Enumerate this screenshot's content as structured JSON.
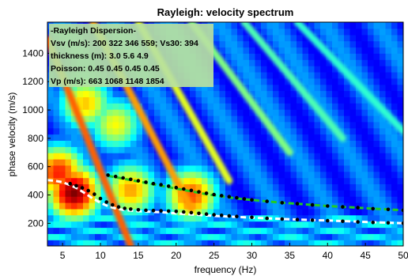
{
  "chart_data": {
    "type": "heatmap",
    "title": "Rayleigh: velocity spectrum",
    "xlabel": "frequency (Hz)",
    "ylabel": "phase velocity (m/s)",
    "xlim": [
      3,
      50
    ],
    "ylim": [
      40,
      1620
    ],
    "xticks": [
      5,
      10,
      15,
      20,
      25,
      30,
      35,
      40,
      45,
      50
    ],
    "yticks": [
      200,
      400,
      600,
      800,
      1000,
      1200,
      1400
    ],
    "colormap": "jet",
    "annotation_lines": [
      "-Rayleigh Dispersion-",
      "Vsv (m/s): 200  322  346  559; Vs30: 394",
      "thickness (m): 3.0   5.6   4.9",
      "Poisson: 0.45  0.45  0.45  0.45",
      "Vp (m/s): 663 1068 1148 1854"
    ],
    "series": [
      {
        "style": "white-dashed-curve",
        "x": [
          3,
          4,
          5,
          6,
          7,
          8,
          9,
          10,
          11,
          12,
          13,
          14,
          15,
          16,
          17,
          18,
          19,
          20,
          22,
          25,
          30,
          35,
          40,
          45,
          50
        ],
        "y": [
          505,
          500,
          490,
          470,
          445,
          410,
          375,
          345,
          320,
          305,
          295,
          290,
          285,
          283,
          280,
          278,
          275,
          270,
          262,
          252,
          240,
          228,
          220,
          210,
          200
        ]
      },
      {
        "style": "black-dots",
        "x": [
          6,
          6.8,
          7.6,
          8.4,
          9.2,
          10,
          10.8,
          11.6,
          12.4,
          13.2,
          14,
          15,
          16,
          17,
          18,
          19,
          20,
          21,
          22,
          23,
          24,
          25,
          26,
          27,
          28,
          30,
          32,
          34,
          36,
          38,
          40,
          42,
          44,
          46,
          48,
          50
        ],
        "y": [
          480,
          465,
          450,
          430,
          405,
          375,
          350,
          330,
          315,
          305,
          300,
          295,
          292,
          290,
          288,
          286,
          284,
          280,
          275,
          270,
          265,
          260,
          256,
          252,
          248,
          242,
          235,
          230,
          226,
          222,
          218,
          214,
          210,
          206,
          203,
          200
        ]
      },
      {
        "style": "green-dashed-curve",
        "x": [
          11,
          12,
          14,
          16,
          18,
          20,
          22,
          24,
          26,
          28,
          30,
          32,
          34,
          36,
          38,
          40,
          42,
          44,
          46,
          48,
          50
        ],
        "y": [
          535,
          525,
          505,
          485,
          465,
          445,
          425,
          405,
          390,
          375,
          365,
          355,
          345,
          338,
          330,
          322,
          316,
          310,
          303,
          298,
          292
        ]
      },
      {
        "style": "black-dots",
        "x": [
          11,
          12,
          13,
          14,
          15,
          16,
          17,
          18,
          19,
          20,
          21,
          22,
          23,
          24,
          25,
          26,
          27,
          28,
          29,
          30,
          32,
          34,
          36,
          38,
          40,
          42,
          44,
          46,
          48,
          50
        ],
        "y": [
          540,
          530,
          520,
          510,
          500,
          490,
          480,
          472,
          462,
          452,
          442,
          432,
          422,
          412,
          403,
          395,
          388,
          380,
          372,
          365,
          355,
          345,
          338,
          330,
          322,
          316,
          310,
          303,
          298,
          292
        ]
      }
    ],
    "spectrum_ridges": [
      {
        "f0": 3,
        "v0": 1500,
        "f1": 14,
        "v1": 40,
        "level": 0.78
      },
      {
        "f0": 9,
        "v0": 1620,
        "f1": 22,
        "v1": 300,
        "level": 0.72
      },
      {
        "f0": 15,
        "v0": 1620,
        "f1": 27,
        "v1": 500,
        "level": 0.6
      },
      {
        "f0": 22,
        "v0": 1620,
        "f1": 35,
        "v1": 700,
        "level": 0.5
      },
      {
        "f0": 29,
        "v0": 1620,
        "f1": 42,
        "v1": 800,
        "level": 0.45
      },
      {
        "f0": 36,
        "v0": 1620,
        "f1": 50,
        "v1": 850,
        "level": 0.42
      }
    ],
    "spectrum_peaks": [
      {
        "f": 6.5,
        "v": 420,
        "level": 1.0
      },
      {
        "f": 4.5,
        "v": 560,
        "level": 0.85
      },
      {
        "f": 14,
        "v": 440,
        "level": 0.72
      },
      {
        "f": 22,
        "v": 400,
        "level": 0.8
      },
      {
        "f": 12,
        "v": 900,
        "level": 0.62
      },
      {
        "f": 8,
        "v": 1050,
        "level": 0.68
      }
    ]
  }
}
